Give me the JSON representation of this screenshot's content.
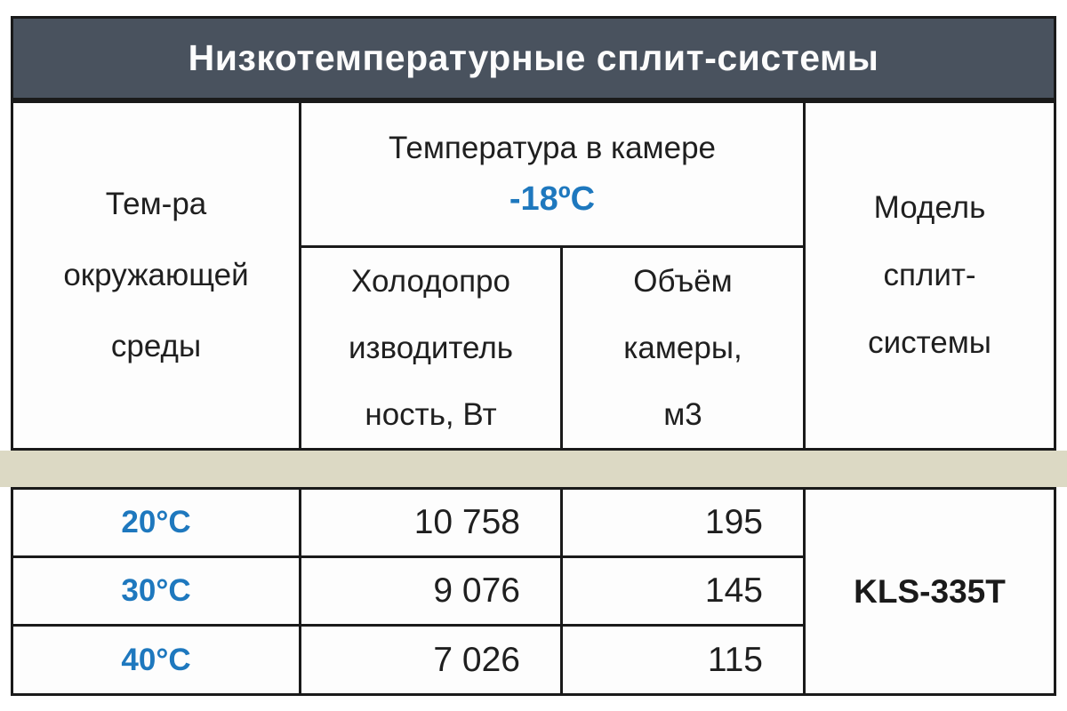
{
  "title": "Низкотемпературные сплит-системы",
  "header": {
    "ambient_label": "Тем-ра\nокружающей\nсреды",
    "chamber_label": "Температура в камере",
    "chamber_value": "-18ºС",
    "capacity_label": "Холодопро\nизводитель\nность, Вт",
    "volume_label": "Объём\nкамеры,\nм3",
    "model_label": "Модель\nсплит-\nсистемы"
  },
  "rows": [
    {
      "ambient": "20°С",
      "capacity": "10 758",
      "volume": "195"
    },
    {
      "ambient": "30°С",
      "capacity": "9 076",
      "volume": "145"
    },
    {
      "ambient": "40°С",
      "capacity": "7 026",
      "volume": "115"
    }
  ],
  "model": "KLS-335T",
  "colors": {
    "title_bar_bg": "#49525E",
    "title_text": "#FCFCFC",
    "accent_blue": "#1E78BE",
    "separator_beige": "#DCD9C4",
    "border": "#1A1A1A",
    "cell_bg": "#FDFDFD"
  },
  "chart_data": {
    "type": "table",
    "title": "Низкотемпературные сплит-системы",
    "chamber_temperature": "-18ºС",
    "columns": [
      "Тем-ра окружающей среды",
      "Холодопроизводительность, Вт",
      "Объём камеры, м3",
      "Модель сплит-системы"
    ],
    "rows": [
      [
        "20°С",
        10758,
        195,
        "KLS-335T"
      ],
      [
        "30°С",
        9076,
        145,
        "KLS-335T"
      ],
      [
        "40°С",
        7026,
        115,
        "KLS-335T"
      ]
    ]
  }
}
